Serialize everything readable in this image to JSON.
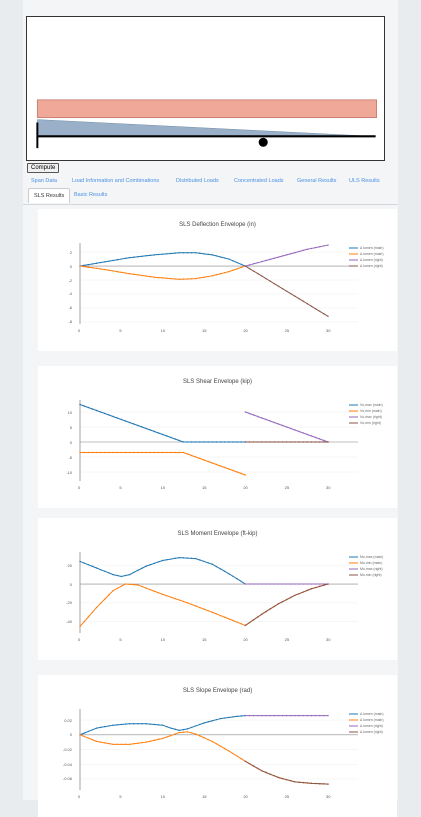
{
  "compute_label": "Compute",
  "tabs": [
    {
      "label": "Span Data"
    },
    {
      "label": "Load Information and Combinations"
    },
    {
      "label": "Distributed Loads"
    },
    {
      "label": "Concentrated Loads"
    },
    {
      "label": "General Results"
    },
    {
      "label": "ULS Results"
    },
    {
      "label": "SLS Results",
      "active": true
    },
    {
      "label": "Basic Results"
    }
  ],
  "colors": {
    "blue": "#1f77b4",
    "orange": "#ff7f0e",
    "purple": "#9467bd",
    "brown": "#8c564b"
  },
  "chart_data": [
    {
      "type": "line",
      "title": "SLS Deflection Envelope (in)",
      "xticks": [
        0,
        5,
        10,
        15,
        20,
        25,
        30
      ],
      "yticks": [
        2,
        0,
        -2,
        -4,
        -6,
        -8
      ],
      "ylim": [
        -8.3,
        3.3
      ],
      "legend": [
        "Δ lumen (main)",
        "Δ lumen (main)",
        "Δ lumen (right)",
        "Δ lumen (right)"
      ],
      "series": [
        {
          "color": "blue",
          "points": [
            [
              0,
              0
            ],
            [
              3,
              0.6
            ],
            [
              6,
              1.2
            ],
            [
              9,
              1.6
            ],
            [
              12,
              1.9
            ],
            [
              14,
              1.9
            ],
            [
              16,
              1.6
            ],
            [
              18,
              1
            ],
            [
              20,
              0
            ]
          ]
        },
        {
          "color": "orange",
          "points": [
            [
              0,
              0
            ],
            [
              3,
              -0.5
            ],
            [
              6,
              -1.1
            ],
            [
              9,
              -1.6
            ],
            [
              12,
              -1.9
            ],
            [
              14,
              -1.8
            ],
            [
              16,
              -1.4
            ],
            [
              18,
              -0.8
            ],
            [
              20,
              0
            ]
          ]
        },
        {
          "color": "purple",
          "points": [
            [
              20,
              0
            ],
            [
              22.5,
              0.8
            ],
            [
              25,
              1.6
            ],
            [
              27.5,
              2.4
            ],
            [
              30,
              3.0
            ]
          ]
        },
        {
          "color": "brown",
          "points": [
            [
              20,
              0
            ],
            [
              22.5,
              -1.8
            ],
            [
              25,
              -3.6
            ],
            [
              27.5,
              -5.4
            ],
            [
              30,
              -7.2
            ]
          ]
        }
      ]
    },
    {
      "type": "line",
      "title": "SLS Shear Envelope (kip)",
      "xticks": [
        0,
        5,
        10,
        15,
        20,
        25,
        30
      ],
      "yticks": [
        10,
        5,
        0,
        -5,
        -10
      ],
      "ylim": [
        -13,
        14
      ],
      "legend": [
        "Vu,max (main)",
        "Vu,min (main)",
        "Vu,max (right)",
        "Vu,min (right)"
      ],
      "series": [
        {
          "color": "blue",
          "points": [
            [
              0,
              12.5
            ],
            [
              12.5,
              0
            ],
            [
              20,
              0
            ]
          ]
        },
        {
          "color": "orange",
          "points": [
            [
              0,
              -3.5
            ],
            [
              12.5,
              -3.5
            ],
            [
              20,
              -11
            ]
          ]
        },
        {
          "color": "purple",
          "points": [
            [
              20,
              10
            ],
            [
              30,
              0
            ]
          ]
        },
        {
          "color": "brown",
          "points": [
            [
              20,
              0
            ],
            [
              30,
              0
            ]
          ]
        }
      ]
    },
    {
      "type": "line",
      "title": "SLS Moment Envelope (ft-kip)",
      "xticks": [
        0,
        5,
        10,
        15,
        20,
        25,
        30
      ],
      "yticks": [
        20,
        0,
        -20,
        -40
      ],
      "ylim": [
        -52,
        34
      ],
      "legend": [
        "Mu,max (main)",
        "Mu,min (main)",
        "Mu,max (right)",
        "Mu,min (right)"
      ],
      "series": [
        {
          "color": "blue",
          "points": [
            [
              0,
              24
            ],
            [
              2,
              17
            ],
            [
              4,
              10
            ],
            [
              5,
              8
            ],
            [
              6,
              10
            ],
            [
              8,
              19
            ],
            [
              10,
              25
            ],
            [
              12,
              28
            ],
            [
              14,
              27
            ],
            [
              16,
              21
            ],
            [
              18,
              11
            ],
            [
              20,
              0
            ]
          ]
        },
        {
          "color": "orange",
          "points": [
            [
              0,
              -45
            ],
            [
              2,
              -25
            ],
            [
              4,
              -7
            ],
            [
              5.5,
              0
            ],
            [
              7,
              -1
            ],
            [
              10,
              -11
            ],
            [
              13,
              -20
            ],
            [
              16,
              -30
            ],
            [
              18,
              -37
            ],
            [
              20,
              -44
            ],
            [
              22,
              -32
            ],
            [
              24,
              -21
            ],
            [
              26,
              -12
            ],
            [
              28,
              -5
            ],
            [
              30,
              0
            ]
          ]
        },
        {
          "color": "purple",
          "points": [
            [
              20,
              0
            ],
            [
              30,
              0
            ]
          ]
        },
        {
          "color": "brown",
          "points": [
            [
              20,
              -44
            ],
            [
              22,
              -32
            ],
            [
              24,
              -21
            ],
            [
              26,
              -12
            ],
            [
              28,
              -5
            ],
            [
              30,
              0
            ]
          ]
        }
      ]
    },
    {
      "type": "line",
      "title": "SLS Slope Envelope (rad)",
      "xticks": [
        0,
        5,
        10,
        15,
        20,
        25,
        30
      ],
      "yticks": [
        0.02,
        0,
        -0.02,
        -0.04,
        -0.06
      ],
      "ylim": [
        -0.075,
        0.035
      ],
      "legend": [
        "Δ lumen (main)",
        "Δ lumen (main)",
        "Δ lumen (right)",
        "Δ lumen (right)"
      ],
      "series": [
        {
          "color": "blue",
          "points": [
            [
              0,
              0
            ],
            [
              2,
              0.009
            ],
            [
              4,
              0.013
            ],
            [
              6,
              0.015
            ],
            [
              8,
              0.015
            ],
            [
              10,
              0.013
            ],
            [
              11,
              0.009
            ],
            [
              12,
              0.006
            ],
            [
              13,
              0.008
            ],
            [
              15,
              0.016
            ],
            [
              17,
              0.022
            ],
            [
              19,
              0.025
            ],
            [
              20,
              0.026
            ]
          ]
        },
        {
          "color": "orange",
          "points": [
            [
              0,
              0
            ],
            [
              2,
              -0.009
            ],
            [
              4,
              -0.013
            ],
            [
              6,
              -0.013
            ],
            [
              8,
              -0.01
            ],
            [
              10,
              -0.005
            ],
            [
              12,
              0.003
            ],
            [
              13,
              0.004
            ],
            [
              14,
              0.001
            ],
            [
              16,
              -0.009
            ],
            [
              18,
              -0.022
            ],
            [
              20,
              -0.036
            ],
            [
              22,
              -0.049
            ],
            [
              24,
              -0.058
            ],
            [
              26,
              -0.064
            ],
            [
              28,
              -0.066
            ],
            [
              30,
              -0.067
            ]
          ]
        },
        {
          "color": "purple",
          "points": [
            [
              20,
              0.026
            ],
            [
              30,
              0.026
            ]
          ]
        },
        {
          "color": "brown",
          "points": [
            [
              20,
              -0.036
            ],
            [
              22,
              -0.049
            ],
            [
              24,
              -0.058
            ],
            [
              26,
              -0.064
            ],
            [
              28,
              -0.066
            ],
            [
              30,
              -0.067
            ]
          ]
        }
      ]
    }
  ]
}
